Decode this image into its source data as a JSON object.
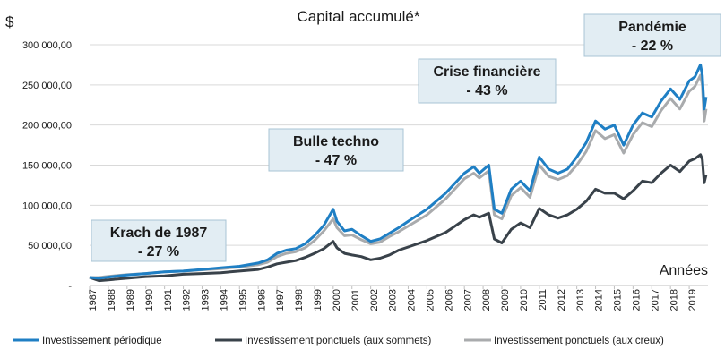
{
  "chart_data": {
    "type": "line",
    "title": "Capital accumulé*",
    "ylabel": "$",
    "xlabel": "Années",
    "ylim": [
      0,
      300000
    ],
    "yticks": [
      "-",
      "50 000,00",
      "100 000,00",
      "150 000,00",
      "200 000,00",
      "250 000,00",
      "300 000,00"
    ],
    "ytick_values": [
      0,
      50000,
      100000,
      150000,
      200000,
      250000,
      300000
    ],
    "xlim": [
      1987,
      2020
    ],
    "categories": [
      "1987",
      "1988",
      "1989",
      "1990",
      "1991",
      "1992",
      "1993",
      "1994",
      "1995",
      "1996",
      "1997",
      "1998",
      "1999",
      "2000",
      "2001",
      "2002",
      "2003",
      "2004",
      "2005",
      "2006",
      "2007",
      "2008",
      "2009",
      "2010",
      "2011",
      "2012",
      "2013",
      "2014",
      "2015",
      "2016",
      "2017",
      "2018",
      "2019"
    ],
    "grid": true,
    "legend_position": "bottom",
    "series": [
      {
        "name": "Investissement périodique",
        "color": "#1f7fc4",
        "x": [
          1987.0,
          1987.5,
          1988,
          1989,
          1990,
          1991,
          1992,
          1993,
          1994,
          1995,
          1996,
          1996.5,
          1997,
          1997.5,
          1998,
          1998.5,
          1999,
          1999.5,
          2000.0,
          2000.2,
          2000.6,
          2001,
          2001.5,
          2002,
          2002.5,
          2003,
          2003.5,
          2004,
          2005,
          2006,
          2007,
          2007.5,
          2007.8,
          2008.3,
          2008.6,
          2009.0,
          2009.5,
          2010,
          2010.5,
          2011,
          2011.5,
          2012,
          2012.5,
          2013,
          2013.5,
          2014,
          2014.5,
          2015,
          2015.5,
          2016,
          2016.5,
          2017,
          2017.5,
          2018,
          2018.5,
          2019,
          2019.3,
          2019.6,
          2019.7,
          2019.8,
          2019.9
        ],
        "values": [
          10000,
          9000,
          10500,
          13000,
          15000,
          17000,
          18000,
          20000,
          22000,
          24000,
          28000,
          32000,
          40000,
          44000,
          46000,
          52000,
          62000,
          75000,
          95000,
          80000,
          68000,
          70000,
          62000,
          55000,
          58000,
          65000,
          72000,
          80000,
          95000,
          115000,
          140000,
          148000,
          140000,
          150000,
          95000,
          90000,
          120000,
          130000,
          118000,
          160000,
          145000,
          140000,
          145000,
          160000,
          178000,
          205000,
          195000,
          200000,
          175000,
          200000,
          215000,
          210000,
          230000,
          245000,
          232000,
          255000,
          260000,
          275000,
          262000,
          220000,
          235000
        ]
      },
      {
        "name": "Investissement ponctuels (aux sommets)",
        "color": "#39424a",
        "x": [
          1987.0,
          1987.5,
          1988,
          1989,
          1990,
          1991,
          1992,
          1993,
          1994,
          1995,
          1996,
          1996.5,
          1997,
          1997.5,
          1998,
          1998.5,
          1999,
          1999.5,
          2000.0,
          2000.2,
          2000.6,
          2001,
          2001.5,
          2002,
          2002.5,
          2003,
          2003.5,
          2004,
          2005,
          2006,
          2007,
          2007.5,
          2007.8,
          2008.3,
          2008.6,
          2009.0,
          2009.5,
          2010,
          2010.5,
          2011,
          2011.5,
          2012,
          2012.5,
          2013,
          2013.5,
          2014,
          2014.5,
          2015,
          2015.5,
          2016,
          2016.5,
          2017,
          2017.5,
          2018,
          2018.5,
          2019,
          2019.3,
          2019.6,
          2019.7,
          2019.8,
          2019.9
        ],
        "values": [
          10000,
          6000,
          7000,
          9000,
          11000,
          12000,
          14000,
          15000,
          16000,
          18000,
          20000,
          23000,
          27000,
          29000,
          31000,
          35000,
          40000,
          46000,
          55000,
          47000,
          40000,
          38000,
          36000,
          32000,
          34000,
          38000,
          44000,
          48000,
          56000,
          66000,
          82000,
          88000,
          85000,
          90000,
          58000,
          53000,
          70000,
          78000,
          72000,
          96000,
          88000,
          84000,
          88000,
          95000,
          105000,
          120000,
          115000,
          115000,
          108000,
          118000,
          130000,
          128000,
          140000,
          150000,
          142000,
          155000,
          158000,
          163000,
          157000,
          128000,
          138000
        ]
      },
      {
        "name": "Investissement ponctuels (aux creux)",
        "color": "#a9abad",
        "x": [
          1987.0,
          1987.5,
          1988,
          1989,
          1990,
          1991,
          1992,
          1993,
          1994,
          1995,
          1996,
          1996.5,
          1997,
          1997.5,
          1998,
          1998.5,
          1999,
          1999.5,
          2000.0,
          2000.2,
          2000.6,
          2001,
          2001.5,
          2002,
          2002.5,
          2003,
          2003.5,
          2004,
          2005,
          2006,
          2007,
          2007.5,
          2007.8,
          2008.3,
          2008.6,
          2009.0,
          2009.5,
          2010,
          2010.5,
          2011,
          2011.5,
          2012,
          2012.5,
          2013,
          2013.5,
          2014,
          2014.5,
          2015,
          2015.5,
          2016,
          2016.5,
          2017,
          2017.5,
          2018,
          2018.5,
          2019,
          2019.3,
          2019.6,
          2019.7,
          2019.8,
          2019.9
        ],
        "values": [
          10000,
          10000,
          11500,
          13500,
          15000,
          17000,
          18000,
          19500,
          21000,
          23000,
          26000,
          29000,
          36000,
          40000,
          42000,
          47000,
          56000,
          68000,
          83000,
          72000,
          62000,
          63000,
          57000,
          52000,
          54000,
          61000,
          67000,
          74000,
          88000,
          108000,
          133000,
          140000,
          134000,
          143000,
          88000,
          83000,
          112000,
          122000,
          110000,
          150000,
          136000,
          132000,
          137000,
          150000,
          167000,
          193000,
          183000,
          188000,
          165000,
          188000,
          203000,
          198000,
          218000,
          233000,
          220000,
          242000,
          248000,
          262000,
          250000,
          205000,
          220000
        ]
      }
    ],
    "annotations": [
      {
        "line1": "Krach de 1987",
        "line2": "- 27 %"
      },
      {
        "line1": "Bulle techno",
        "line2": "- 47 %"
      },
      {
        "line1": "Crise financière",
        "line2": "- 43 %"
      },
      {
        "line1": "Pandémie",
        "line2": "- 22 %"
      }
    ],
    "annotation_fill": "#e2edf3",
    "annotation_stroke": "#a8c4d4"
  }
}
